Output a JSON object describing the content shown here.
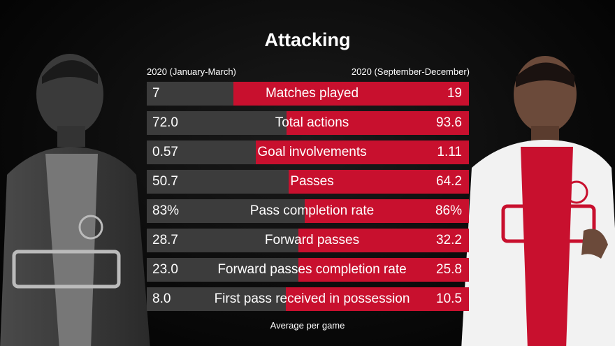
{
  "title": "Attacking",
  "periods": {
    "left": "2020 (January-March)",
    "right": "2020 (September-December)"
  },
  "footer": "Average per game",
  "colors": {
    "left_bar": "#3c3c3c",
    "right_bar": "#c8102e"
  },
  "chart_data": {
    "type": "bar",
    "title": "Attacking",
    "series": [
      {
        "name": "2020 (January-March)",
        "values": [
          7,
          72.0,
          0.57,
          50.7,
          83,
          28.7,
          23.0,
          8.0
        ],
        "labels": [
          "7",
          "72.0",
          "0.57",
          "50.7",
          "83%",
          "28.7",
          "23.0",
          "8.0"
        ]
      },
      {
        "name": "2020 (September-December)",
        "values": [
          19,
          93.6,
          1.11,
          64.2,
          86,
          32.2,
          25.8,
          10.5
        ],
        "labels": [
          "19",
          "93.6",
          "1.11",
          "64.2",
          "86%",
          "32.2",
          "25.8",
          "10.5"
        ]
      }
    ],
    "categories": [
      "Matches played",
      "Total actions",
      "Goal involvements",
      "Passes",
      "Pass completion rate",
      "Forward passes",
      "Forward passes completion rate",
      "First pass received in possession"
    ],
    "xlabel": "Average per game",
    "ylabel": ""
  }
}
